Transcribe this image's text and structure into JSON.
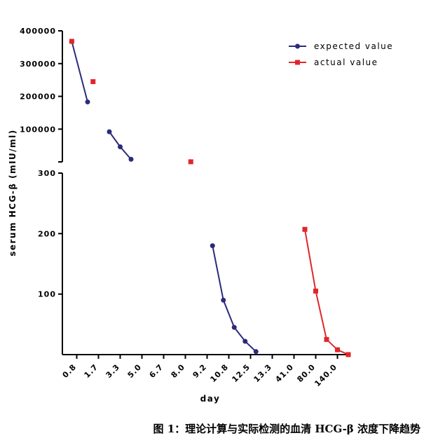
{
  "caption": "图 1：理论计算与实际检测的血清 HCG-β 浓度下降趋势",
  "chart_data": {
    "type": "line",
    "xlabel": "day",
    "ylabel": "serum HCG-β (mIU/ml)",
    "categories": [
      "0.8",
      "1.7",
      "3.3",
      "5.0",
      "6.7",
      "8.0",
      "9.2",
      "10.8",
      "12.5",
      "13.3",
      "41.0",
      "80.0",
      "140.0"
    ],
    "y_axis_top": {
      "range": [
        0,
        400000
      ],
      "ticks": [
        "400000",
        "300000",
        "200000",
        "100000"
      ]
    },
    "y_axis_bottom": {
      "range": [
        0,
        300
      ],
      "ticks": [
        "300",
        "200",
        "100"
      ]
    },
    "axis_break": true,
    "legend_position": "top-right",
    "series": [
      {
        "name": "expected value",
        "color": "#2c2a7a",
        "marker": "circle",
        "segments": [
          [
            {
              "x": 0.27,
              "y": 368000
            },
            {
              "x": 1.0,
              "y": 183000
            }
          ],
          [
            {
              "x": 2.0,
              "y": 92000
            },
            {
              "x": 2.5,
              "y": 46000
            },
            {
              "x": 3.0,
              "y": 8000
            }
          ],
          [
            {
              "x": 6.75,
              "y": 180
            },
            {
              "x": 7.25,
              "y": 90
            },
            {
              "x": 7.75,
              "y": 45
            },
            {
              "x": 8.25,
              "y": 22
            },
            {
              "x": 8.75,
              "y": 5
            }
          ]
        ]
      },
      {
        "name": "actual value",
        "color": "#e0262b",
        "marker": "square",
        "segments": [
          [
            {
              "x": 0.27,
              "y": 368000
            }
          ],
          [
            {
              "x": 1.25,
              "y": 245000
            }
          ],
          [
            {
              "x": 5.75,
              "y": 330
            }
          ],
          [
            {
              "x": 11.0,
              "y": 207
            },
            {
              "x": 11.5,
              "y": 105
            },
            {
              "x": 12.0,
              "y": 25
            },
            {
              "x": 12.5,
              "y": 8
            },
            {
              "x": 13.0,
              "y": 0
            }
          ]
        ]
      }
    ]
  }
}
